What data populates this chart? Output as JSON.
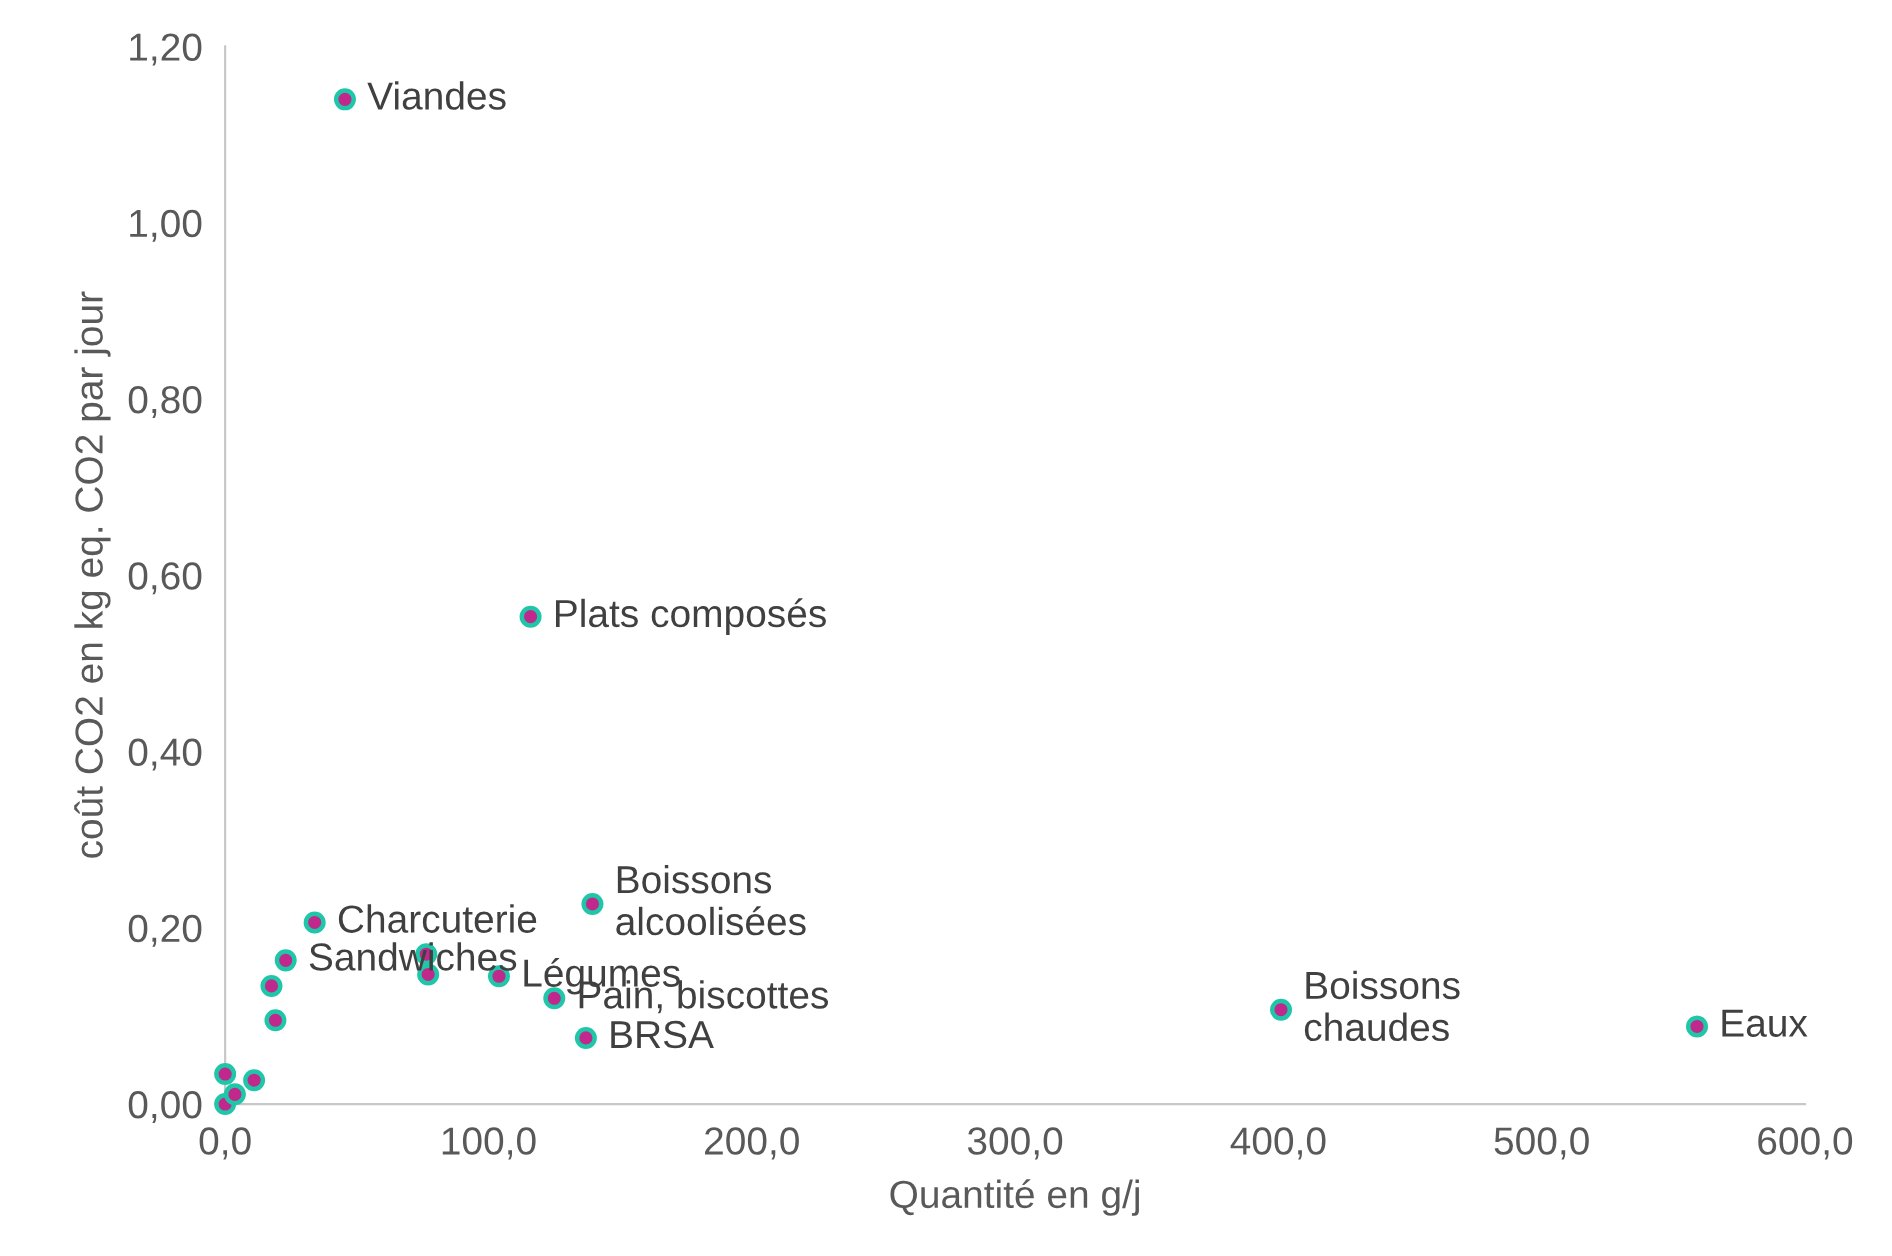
{
  "chart_data": {
    "type": "scatter",
    "xlabel": "Quantité en g/j",
    "ylabel": "coût CO2 en kg eq. CO2 par jour",
    "xlim": [
      0,
      600
    ],
    "ylim": [
      0,
      1.2
    ],
    "xticks": [
      {
        "value": 0,
        "label": "0,0"
      },
      {
        "value": 100,
        "label": "100,0"
      },
      {
        "value": 200,
        "label": "200,0"
      },
      {
        "value": 300,
        "label": "300,0"
      },
      {
        "value": 400,
        "label": "400,0"
      },
      {
        "value": 500,
        "label": "500,0"
      },
      {
        "value": 600,
        "label": "600,0"
      }
    ],
    "yticks": [
      {
        "value": 0,
        "label": "0,00"
      },
      {
        "value": 0.2,
        "label": "0,20"
      },
      {
        "value": 0.4,
        "label": "0,40"
      },
      {
        "value": 0.6,
        "label": "0,60"
      },
      {
        "value": 0.8,
        "label": "0,80"
      },
      {
        "value": 1.0,
        "label": "1,00"
      },
      {
        "value": 1.2,
        "label": "1,20"
      }
    ],
    "grid": false,
    "marker": "circle",
    "series": [
      {
        "color": "#c0288c",
        "x": [
          45.5,
          116,
          139.5,
          401,
          559,
          34,
          23,
          76.4,
          77.1,
          104,
          125,
          137,
          17.6,
          19.1,
          0,
          0,
          3.7,
          11
        ],
        "values": [
          1.14,
          0.553,
          0.227,
          0.107,
          0.088,
          0.206,
          0.163,
          0.17,
          0.147,
          0.145,
          0.12,
          0.075,
          0.134,
          0.095,
          0.034,
          0.0,
          0.011,
          0.027
        ]
      }
    ],
    "annotations": [
      {
        "text": "Viandes",
        "x": 45.5,
        "y": 1.14
      },
      {
        "text": "Plats composés",
        "x": 116,
        "y": 0.553
      },
      {
        "text": "Boissons\nalcoolisées",
        "x": 139.5,
        "y": 0.227
      },
      {
        "text": "Boissons\nchaudes",
        "x": 401,
        "y": 0.107
      },
      {
        "text": "Eaux",
        "x": 559,
        "y": 0.088
      },
      {
        "text": "Charcuterie",
        "x": 34,
        "y": 0.206
      },
      {
        "text": "Sandwiches",
        "x": 23,
        "y": 0.163
      },
      {
        "text": "Légumes",
        "x": 104,
        "y": 0.145
      },
      {
        "text": "Pain, biscottes",
        "x": 125,
        "y": 0.12
      },
      {
        "text": "BRSA",
        "x": 137,
        "y": 0.075
      }
    ]
  }
}
